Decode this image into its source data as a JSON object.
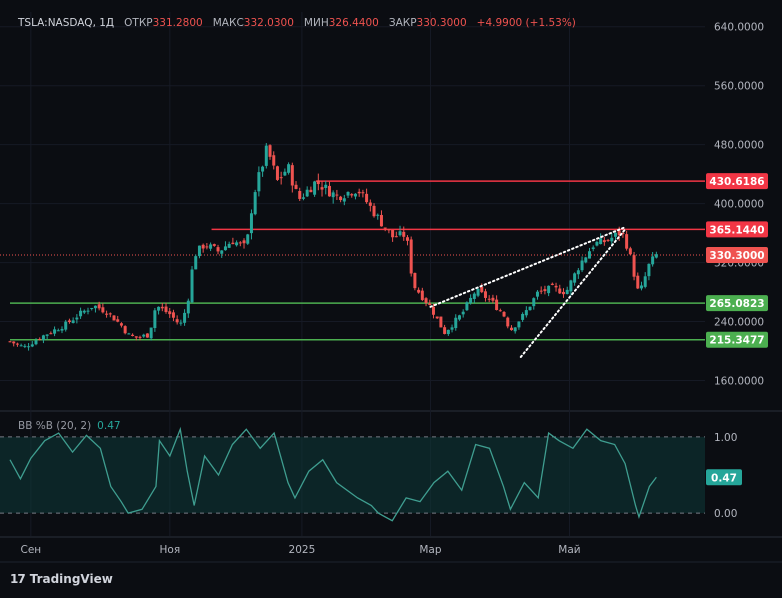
{
  "header": {
    "symbol": "TSLA:NASDAQ, 1Д",
    "open_label": "ОТКР",
    "open": "331.2800",
    "high_label": "МАКС",
    "high": "332.0300",
    "low_label": "МИН",
    "low": "326.4400",
    "close_label": "ЗАКР",
    "close": "330.3000",
    "change": "+4.9900 (+1.53%)"
  },
  "indicator": {
    "label": "BB %B (20, 2)",
    "value": "0.47"
  },
  "branding": {
    "name": "TradingView"
  },
  "colors": {
    "up": "#26a69a",
    "down": "#ef5350",
    "background": "#0b0d12",
    "resistance": "#f23645",
    "support": "#4caf50",
    "bb": "#3f9e90"
  },
  "chart_data": [
    {
      "type": "candlestick",
      "x_labels": [
        "Сен",
        "Ноя",
        "2025",
        "Мар",
        "Май"
      ],
      "y_ticks": [
        "160.0000",
        "240.0000",
        "320.0000",
        "400.0000",
        "480.0000",
        "560.0000",
        "640.0000"
      ],
      "ylim": [
        120,
        660
      ],
      "price_levels": [
        {
          "value": 430.6186,
          "label": "430.6186",
          "color": "#f23645",
          "x_start": 0.44
        },
        {
          "value": 365.144,
          "label": "365.1440",
          "color": "#f23645",
          "x_start": 0.29
        },
        {
          "value": 265.0823,
          "label": "265.0823",
          "color": "#4caf50",
          "x_start": 0.0
        },
        {
          "value": 215.3477,
          "label": "215.3477",
          "color": "#4caf50",
          "x_start": 0.0
        }
      ],
      "current_price": {
        "value": 330.3,
        "label": "330.3000"
      },
      "trendlines": [
        {
          "from": [
            0.605,
            260
          ],
          "to": [
            0.885,
            368
          ]
        },
        {
          "from": [
            0.735,
            192
          ],
          "to": [
            0.885,
            365
          ]
        }
      ],
      "close_path": [
        [
          0,
          213
        ],
        [
          0.02,
          205
        ],
        [
          0.05,
          222
        ],
        [
          0.08,
          236
        ],
        [
          0.1,
          250
        ],
        [
          0.12,
          262
        ],
        [
          0.14,
          253
        ],
        [
          0.16,
          235
        ],
        [
          0.17,
          222
        ],
        [
          0.18,
          218
        ],
        [
          0.2,
          222
        ],
        [
          0.21,
          262
        ],
        [
          0.23,
          250
        ],
        [
          0.245,
          235
        ],
        [
          0.255,
          262
        ],
        [
          0.265,
          330
        ],
        [
          0.28,
          345
        ],
        [
          0.3,
          335
        ],
        [
          0.32,
          350
        ],
        [
          0.34,
          340
        ],
        [
          0.35,
          410
        ],
        [
          0.37,
          475
        ],
        [
          0.385,
          430
        ],
        [
          0.4,
          450
        ],
        [
          0.415,
          405
        ],
        [
          0.44,
          430
        ],
        [
          0.47,
          410
        ],
        [
          0.5,
          420
        ],
        [
          0.53,
          380
        ],
        [
          0.55,
          355
        ],
        [
          0.57,
          358
        ],
        [
          0.58,
          290
        ],
        [
          0.605,
          260
        ],
        [
          0.625,
          225
        ],
        [
          0.65,
          250
        ],
        [
          0.67,
          282
        ],
        [
          0.69,
          270
        ],
        [
          0.71,
          250
        ],
        [
          0.72,
          228
        ],
        [
          0.74,
          250
        ],
        [
          0.76,
          280
        ],
        [
          0.78,
          285
        ],
        [
          0.8,
          280
        ],
        [
          0.82,
          318
        ],
        [
          0.84,
          345
        ],
        [
          0.86,
          350
        ],
        [
          0.88,
          362
        ],
        [
          0.89,
          338
        ],
        [
          0.905,
          275
        ],
        [
          0.92,
          318
        ],
        [
          0.93,
          330
        ]
      ]
    },
    {
      "type": "line",
      "name": "BB %B (20, 2)",
      "y_ticks": [
        "0.00",
        "0.47",
        "1.00"
      ],
      "ylim": [
        -0.3,
        1.3
      ],
      "bands": [
        0,
        1
      ],
      "last_value": 0.47,
      "points": [
        [
          0,
          0.7
        ],
        [
          0.015,
          0.45
        ],
        [
          0.03,
          0.72
        ],
        [
          0.05,
          0.95
        ],
        [
          0.07,
          1.05
        ],
        [
          0.09,
          0.8
        ],
        [
          0.11,
          1.02
        ],
        [
          0.13,
          0.85
        ],
        [
          0.145,
          0.35
        ],
        [
          0.16,
          0.15
        ],
        [
          0.17,
          0.0
        ],
        [
          0.19,
          0.05
        ],
        [
          0.21,
          0.35
        ],
        [
          0.215,
          0.95
        ],
        [
          0.23,
          0.75
        ],
        [
          0.245,
          1.1
        ],
        [
          0.255,
          0.55
        ],
        [
          0.265,
          0.1
        ],
        [
          0.28,
          0.75
        ],
        [
          0.3,
          0.5
        ],
        [
          0.32,
          0.9
        ],
        [
          0.34,
          1.1
        ],
        [
          0.36,
          0.85
        ],
        [
          0.38,
          1.05
        ],
        [
          0.4,
          0.4
        ],
        [
          0.41,
          0.2
        ],
        [
          0.43,
          0.55
        ],
        [
          0.45,
          0.7
        ],
        [
          0.47,
          0.4
        ],
        [
          0.5,
          0.2
        ],
        [
          0.52,
          0.1
        ],
        [
          0.53,
          0.0
        ],
        [
          0.55,
          -0.1
        ],
        [
          0.57,
          0.2
        ],
        [
          0.59,
          0.15
        ],
        [
          0.61,
          0.4
        ],
        [
          0.63,
          0.55
        ],
        [
          0.65,
          0.3
        ],
        [
          0.67,
          0.9
        ],
        [
          0.69,
          0.85
        ],
        [
          0.71,
          0.35
        ],
        [
          0.72,
          0.05
        ],
        [
          0.74,
          0.4
        ],
        [
          0.76,
          0.2
        ],
        [
          0.775,
          1.05
        ],
        [
          0.79,
          0.95
        ],
        [
          0.81,
          0.85
        ],
        [
          0.83,
          1.1
        ],
        [
          0.85,
          0.95
        ],
        [
          0.87,
          0.9
        ],
        [
          0.885,
          0.65
        ],
        [
          0.9,
          0.1
        ],
        [
          0.905,
          -0.05
        ],
        [
          0.92,
          0.35
        ],
        [
          0.93,
          0.47
        ]
      ]
    }
  ]
}
